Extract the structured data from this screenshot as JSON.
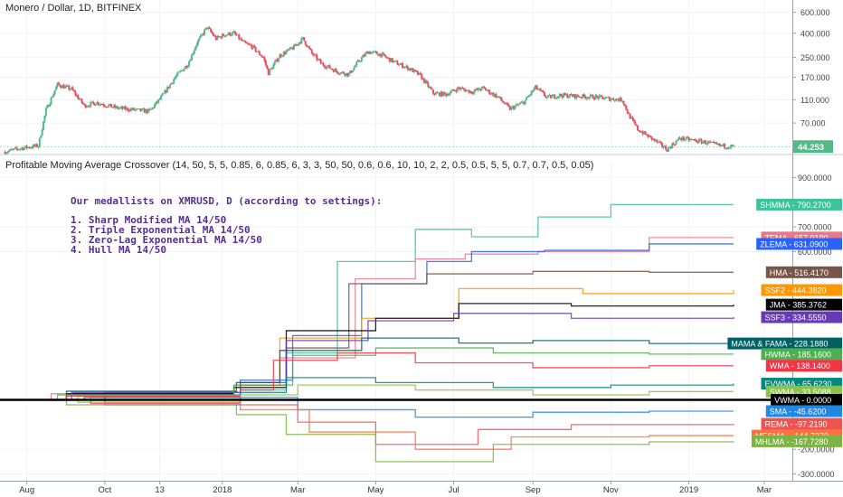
{
  "main_title": "Monero / Dollar, 1D, BITFINEX",
  "indicator_title": "Profitable Moving Average Crossover (14, 50, 5, 5, 0.85, 6, 0.85, 6, 3, 3, 50, 50, 0.6, 0.6, 10, 10, 2, 2, 0.5, 0.5, 5, 5, 0.7, 0.7, 0.5, 0.05)",
  "annotation": {
    "heading": "Our medallists on XMRUSD, D (according to settings):",
    "items": [
      "1. Sharp Modified MA 14/50",
      "2. Triple Exponential MA 14/50",
      "3. Zero-Lag Exponential MA 14/50",
      "4. Hull MA 14/50"
    ]
  },
  "chart_data": [
    {
      "type": "candlestick",
      "title": "Monero / Dollar, 1D, BITFINEX",
      "x_tick_labels": [
        "Aug",
        "Oct",
        "13",
        "2018",
        "Mar",
        "May",
        "Jul",
        "Sep",
        "Nov",
        "2019",
        "Mar"
      ],
      "y_scale": "log",
      "y_tick_labels": [
        "600.000",
        "400.000",
        "250.000",
        "170.000",
        "110.000",
        "70.000"
      ],
      "y_ticks": [
        600,
        400,
        250,
        170,
        110,
        70
      ],
      "ylim": [
        40,
        640
      ],
      "last_price": 44.253,
      "last_price_label": "44.253",
      "up_color": "#53b987",
      "down_color": "#eb4d5c",
      "close_path": [
        [
          "2017-07-15",
          40
        ],
        [
          "2017-07-28",
          43
        ],
        [
          "2017-08-10",
          45
        ],
        [
          "2017-08-16",
          90
        ],
        [
          "2017-08-25",
          148
        ],
        [
          "2017-09-05",
          135
        ],
        [
          "2017-09-15",
          98
        ],
        [
          "2017-09-25",
          104
        ],
        [
          "2017-10-10",
          94
        ],
        [
          "2017-10-25",
          90
        ],
        [
          "2017-11-05",
          88
        ],
        [
          "2017-11-15",
          118
        ],
        [
          "2017-11-25",
          170
        ],
        [
          "2017-12-05",
          220
        ],
        [
          "2017-12-12",
          330
        ],
        [
          "2017-12-20",
          450
        ],
        [
          "2017-12-27",
          360
        ],
        [
          "2018-01-03",
          390
        ],
        [
          "2018-01-10",
          400
        ],
        [
          "2018-01-18",
          330
        ],
        [
          "2018-01-24",
          310
        ],
        [
          "2018-02-02",
          250
        ],
        [
          "2018-02-06",
          185
        ],
        [
          "2018-02-15",
          260
        ],
        [
          "2018-02-25",
          300
        ],
        [
          "2018-03-05",
          360
        ],
        [
          "2018-03-12",
          270
        ],
        [
          "2018-03-20",
          220
        ],
        [
          "2018-04-01",
          190
        ],
        [
          "2018-04-10",
          180
        ],
        [
          "2018-04-18",
          235
        ],
        [
          "2018-04-25",
          280
        ],
        [
          "2018-05-05",
          265
        ],
        [
          "2018-05-15",
          230
        ],
        [
          "2018-05-28",
          200
        ],
        [
          "2018-06-05",
          175
        ],
        [
          "2018-06-15",
          125
        ],
        [
          "2018-06-25",
          122
        ],
        [
          "2018-07-05",
          138
        ],
        [
          "2018-07-15",
          128
        ],
        [
          "2018-07-24",
          138
        ],
        [
          "2018-08-05",
          115
        ],
        [
          "2018-08-14",
          92
        ],
        [
          "2018-08-25",
          105
        ],
        [
          "2018-09-03",
          140
        ],
        [
          "2018-09-12",
          115
        ],
        [
          "2018-09-22",
          120
        ],
        [
          "2018-10-05",
          118
        ],
        [
          "2018-10-20",
          116
        ],
        [
          "2018-11-01",
          112
        ],
        [
          "2018-11-10",
          110
        ],
        [
          "2018-11-15",
          82
        ],
        [
          "2018-11-22",
          62
        ],
        [
          "2018-12-05",
          50
        ],
        [
          "2018-12-15",
          42
        ],
        [
          "2018-12-25",
          52
        ],
        [
          "2019-01-05",
          50
        ],
        [
          "2019-01-15",
          48
        ],
        [
          "2019-01-25",
          45
        ],
        [
          "2019-02-05",
          44.253
        ]
      ]
    },
    {
      "type": "line",
      "title": "Profitable Moving Average Crossover",
      "x_tick_labels": [
        "Aug",
        "Oct",
        "13",
        "2018",
        "Mar",
        "May",
        "Jul",
        "Sep",
        "Nov",
        "2019",
        "Mar"
      ],
      "y_tick_labels": [
        "900.0000",
        "700.0000",
        "600.0000",
        "-200.0000",
        "-300.0000"
      ],
      "y_ticks": [
        900,
        700,
        600,
        -200,
        -300
      ],
      "ylim": [
        -320,
        960
      ],
      "zero_line": true,
      "series": [
        {
          "name": "SHMMA",
          "value": 790.27,
          "label": "790.2700",
          "color": "#3ec29a",
          "path": [
            [
              "2017-07-10",
              0
            ],
            [
              "2017-09-20",
              10
            ],
            [
              "2018-01-15",
              40
            ],
            [
              "2018-02-20",
              190
            ],
            [
              "2018-04-01",
              560
            ],
            [
              "2018-06-01",
              690
            ],
            [
              "2018-07-15",
              660
            ],
            [
              "2018-09-05",
              740
            ],
            [
              "2018-11-01",
              790.27
            ],
            [
              "2019-02-05",
              790.27
            ]
          ]
        },
        {
          "name": "TEMA",
          "value": 657.019,
          "label": "657.0190",
          "color": "#e77a8a",
          "path": [
            [
              "2017-07-10",
              0
            ],
            [
              "2017-08-20",
              25
            ],
            [
              "2018-01-10",
              60
            ],
            [
              "2018-02-15",
              170
            ],
            [
              "2018-04-15",
              490
            ],
            [
              "2018-06-01",
              570
            ],
            [
              "2018-07-10",
              590
            ],
            [
              "2018-09-05",
              600
            ],
            [
              "2018-12-01",
              657.019
            ],
            [
              "2019-02-05",
              657.019
            ]
          ]
        },
        {
          "name": "ZLEMA",
          "value": 631.09,
          "label": "631.0900",
          "color": "#2962ff",
          "path": [
            [
              "2017-07-10",
              0
            ],
            [
              "2017-09-01",
              20
            ],
            [
              "2018-01-15",
              80
            ],
            [
              "2018-02-25",
              260
            ],
            [
              "2018-04-20",
              470
            ],
            [
              "2018-06-10",
              560
            ],
            [
              "2018-07-15",
              600
            ],
            [
              "2018-09-10",
              605
            ],
            [
              "2018-12-01",
              631.09
            ],
            [
              "2019-02-05",
              631.09
            ]
          ]
        },
        {
          "name": "HMA",
          "value": 516.417,
          "label": "516.4170",
          "color": "#795548",
          "path": [
            [
              "2017-07-10",
              0
            ],
            [
              "2017-10-01",
              30
            ],
            [
              "2018-01-15",
              70
            ],
            [
              "2018-02-20",
              210
            ],
            [
              "2018-04-10",
              470
            ],
            [
              "2018-06-10",
              510
            ],
            [
              "2018-09-01",
              520
            ],
            [
              "2018-12-01",
              516.417
            ],
            [
              "2019-02-05",
              516.417
            ]
          ]
        },
        {
          "name": "SSF2",
          "value": 444.382,
          "label": "444.3820",
          "color": "#ff9800",
          "path": [
            [
              "2017-07-10",
              0
            ],
            [
              "2017-09-10",
              15
            ],
            [
              "2018-01-15",
              60
            ],
            [
              "2018-02-15",
              250
            ],
            [
              "2018-04-20",
              330
            ],
            [
              "2018-07-05",
              450
            ],
            [
              "2018-10-10",
              430
            ],
            [
              "2019-02-05",
              444.382
            ]
          ]
        },
        {
          "name": "JMA",
          "value": 385.3762,
          "label": "385.3762",
          "color": "#000000",
          "path": [
            [
              "2017-07-10",
              0
            ],
            [
              "2017-09-01",
              25
            ],
            [
              "2018-01-10",
              50
            ],
            [
              "2018-02-20",
              280
            ],
            [
              "2018-05-01",
              330
            ],
            [
              "2018-07-05",
              390
            ],
            [
              "2018-10-01",
              380
            ],
            [
              "2019-02-05",
              385.3762
            ]
          ]
        },
        {
          "name": "SSF3",
          "value": 334.555,
          "label": "334.5550",
          "color": "#673ab7",
          "path": [
            [
              "2017-07-10",
              0
            ],
            [
              "2017-09-05",
              30
            ],
            [
              "2018-01-15",
              60
            ],
            [
              "2018-02-20",
              240
            ],
            [
              "2018-04-25",
              320
            ],
            [
              "2018-07-01",
              350
            ],
            [
              "2018-10-01",
              330
            ],
            [
              "2019-02-05",
              334.555
            ]
          ]
        },
        {
          "name": "MAMA & FAMA",
          "value": 228.188,
          "label": "228.1880",
          "color": "#006064",
          "path": [
            [
              "2017-07-10",
              0
            ],
            [
              "2017-09-01",
              35
            ],
            [
              "2018-01-12",
              70
            ],
            [
              "2018-02-15",
              200
            ],
            [
              "2018-04-20",
              250
            ],
            [
              "2018-07-05",
              230
            ],
            [
              "2018-09-01",
              240
            ],
            [
              "2018-12-01",
              228.188
            ],
            [
              "2019-02-05",
              228.188
            ]
          ]
        },
        {
          "name": "HWMA",
          "value": 185.16,
          "label": "185.1600",
          "color": "#4caf50",
          "path": [
            [
              "2017-07-10",
              0
            ],
            [
              "2017-08-25",
              20
            ],
            [
              "2018-01-10",
              60
            ],
            [
              "2018-02-25",
              180
            ],
            [
              "2018-05-01",
              210
            ],
            [
              "2018-08-01",
              190
            ],
            [
              "2018-12-01",
              185.16
            ],
            [
              "2019-02-05",
              185.16
            ]
          ]
        },
        {
          "name": "WMA",
          "value": 138.14,
          "label": "138.1400",
          "color": "#f23645",
          "path": [
            [
              "2017-07-10",
              0
            ],
            [
              "2017-09-01",
              15
            ],
            [
              "2018-01-15",
              40
            ],
            [
              "2018-02-10",
              160
            ],
            [
              "2018-04-01",
              190
            ],
            [
              "2018-06-01",
              150
            ],
            [
              "2018-09-01",
              130
            ],
            [
              "2018-12-01",
              138.14
            ],
            [
              "2019-02-05",
              138.14
            ]
          ]
        },
        {
          "name": "EVWMA",
          "value": 65.623,
          "label": "65.6230",
          "color": "#00897b",
          "path": [
            [
              "2017-07-10",
              0
            ],
            [
              "2017-09-15",
              10
            ],
            [
              "2018-01-15",
              30
            ],
            [
              "2018-02-20",
              90
            ],
            [
              "2018-05-01",
              70
            ],
            [
              "2018-08-01",
              50
            ],
            [
              "2018-11-01",
              60
            ],
            [
              "2019-02-05",
              65.623
            ]
          ]
        },
        {
          "name": "SWMA",
          "value": 33.5088,
          "label": "33.5088",
          "color": "#8bc34a",
          "path": [
            [
              "2017-07-10",
              0
            ],
            [
              "2017-09-10",
              -10
            ],
            [
              "2018-01-15",
              20
            ],
            [
              "2018-03-01",
              60
            ],
            [
              "2018-06-01",
              40
            ],
            [
              "2018-09-01",
              20
            ],
            [
              "2018-12-01",
              33.5088
            ],
            [
              "2019-02-05",
              33.5088
            ]
          ]
        },
        {
          "name": "VWMA",
          "value": 0,
          "label": "0.0000",
          "color": "#000000",
          "path": [
            [
              "2017-07-10",
              0
            ],
            [
              "2019-02-05",
              0
            ]
          ]
        },
        {
          "name": "SMA",
          "value": -45.62,
          "label": "-45.6200",
          "color": "#1e88e5",
          "path": [
            [
              "2017-07-10",
              0
            ],
            [
              "2017-10-01",
              -20
            ],
            [
              "2018-01-15",
              10
            ],
            [
              "2018-03-01",
              -40
            ],
            [
              "2018-06-01",
              -70
            ],
            [
              "2018-09-01",
              -50
            ],
            [
              "2018-12-01",
              -45.62
            ],
            [
              "2019-02-05",
              -45.62
            ]
          ]
        },
        {
          "name": "REMA",
          "value": -97.219,
          "label": "-97.2190",
          "color": "#ef5350",
          "path": [
            [
              "2017-07-10",
              0
            ],
            [
              "2017-09-20",
              -15
            ],
            [
              "2018-01-15",
              -20
            ],
            [
              "2018-03-01",
              -90
            ],
            [
              "2018-05-01",
              -180
            ],
            [
              "2018-07-20",
              -120
            ],
            [
              "2018-10-01",
              -100
            ],
            [
              "2019-02-05",
              -97.219
            ]
          ]
        },
        {
          "name": "MESMA",
          "value": -144.737,
          "label": "-144.7370",
          "color": "#ff7043",
          "path": [
            [
              "2017-07-10",
              0
            ],
            [
              "2017-10-01",
              -10
            ],
            [
              "2018-01-15",
              -40
            ],
            [
              "2018-03-10",
              -130
            ],
            [
              "2018-06-01",
              -200
            ],
            [
              "2018-08-15",
              -150
            ],
            [
              "2018-12-01",
              -144.737
            ],
            [
              "2019-02-05",
              -144.737
            ]
          ]
        },
        {
          "name": "MHLMA",
          "value": -167.728,
          "label": "-167.7280",
          "color": "#7cb342",
          "path": [
            [
              "2017-07-10",
              0
            ],
            [
              "2017-09-01",
              -20
            ],
            [
              "2018-01-12",
              -60
            ],
            [
              "2018-02-20",
              -140
            ],
            [
              "2018-05-01",
              -250
            ],
            [
              "2018-08-01",
              -180
            ],
            [
              "2018-12-01",
              -170
            ],
            [
              "2019-02-05",
              -167.728
            ]
          ]
        }
      ]
    }
  ]
}
